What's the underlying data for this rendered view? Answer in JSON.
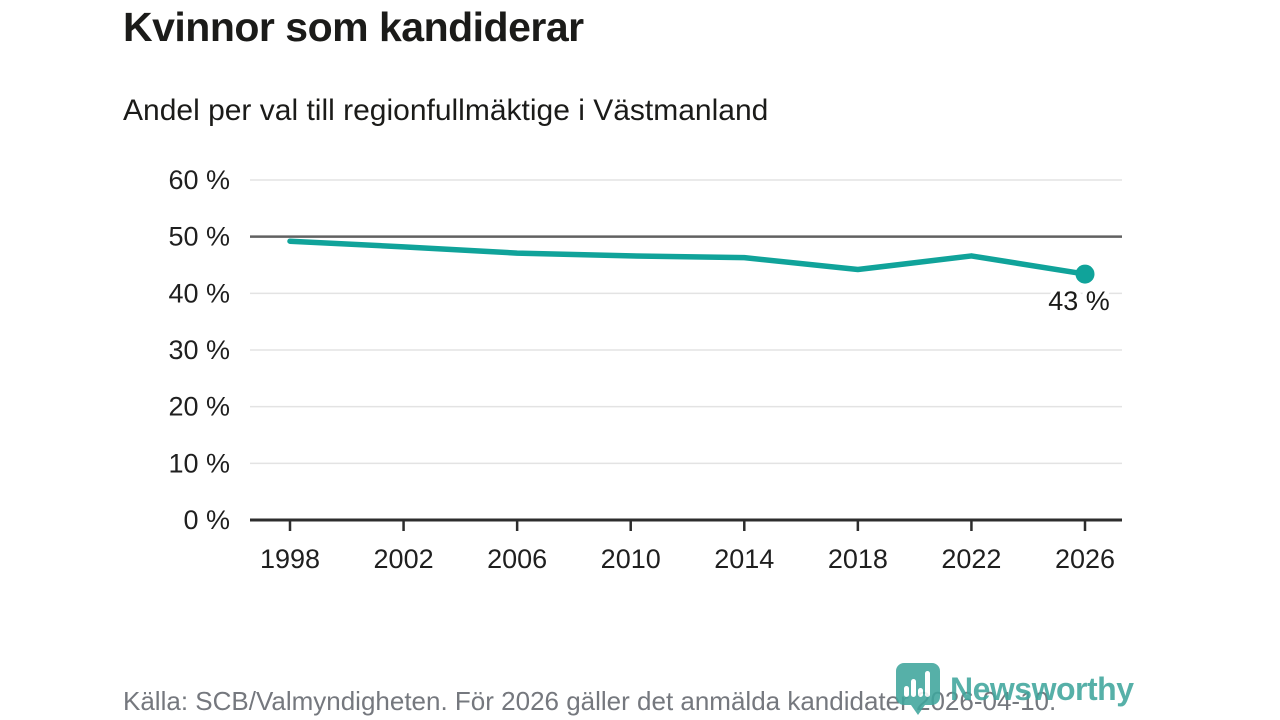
{
  "header": {
    "title": "Kvinnor som kandiderar",
    "subtitle": "Andel per val till regionfullmäktige i Västmanland"
  },
  "chart_data": {
    "type": "line",
    "title": "Kvinnor som kandiderar",
    "subtitle": "Andel per val till regionfullmäktige i Västmanland",
    "x": [
      1998,
      2002,
      2006,
      2010,
      2014,
      2018,
      2022,
      2026
    ],
    "series": [
      {
        "name": "Kvinnor som kandiderar",
        "values": [
          49.2,
          48.2,
          47.1,
          46.6,
          46.3,
          44.2,
          46.6,
          43.4
        ]
      }
    ],
    "point_label": {
      "x": 2026,
      "text": "43 %"
    },
    "ylim": [
      0,
      60
    ],
    "ytick_step": 10,
    "yticks": [
      "0 %",
      "10 %",
      "20 %",
      "30 %",
      "40 %",
      "50 %",
      "60 %"
    ],
    "reference_line": 50,
    "grid": "horizontal",
    "legend": "none",
    "last_point_marker": true
  },
  "footer": {
    "source": "Källa: SCB/Valmyndigheten. För 2026 gäller det anmälda kandidater 2026-04-10.",
    "brand": "Newsworthy"
  },
  "colors": {
    "line": "#10a39a",
    "grid": "#e3e3e3",
    "reference_line": "#616161",
    "axis": "#2d2d2d",
    "title_text": "#1b1b19",
    "tick_text": "#1f1f1f",
    "source_text": "#75787e",
    "brand_teal": "#3fa69d",
    "label_halo": "#ffffff"
  }
}
